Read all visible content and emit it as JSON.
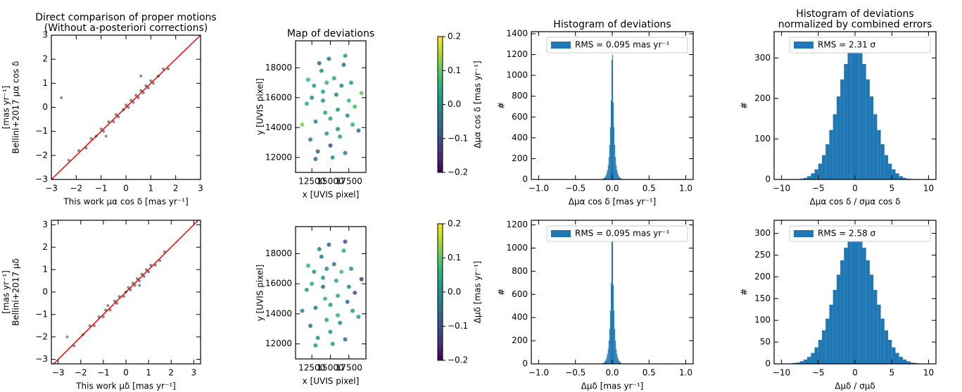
{
  "chart_data": [
    {
      "type": "scatter",
      "title": [
        "Direct comparison of proper motions",
        "(Without a-posteriori corrections)"
      ],
      "xlabel": "This work μα cos δ [mas yr⁻¹]",
      "ylabel": [
        "Bellini+2017 μα cos δ",
        "[mas yr⁻¹]"
      ],
      "x": [
        -2.3,
        -1.9,
        -1.6,
        -1.4,
        -1.2,
        -1.0,
        -0.9,
        -0.7,
        -0.5,
        -0.4,
        -0.3,
        -0.1,
        0.0,
        0.1,
        0.2,
        0.3,
        0.4,
        0.5,
        0.6,
        0.7,
        0.8,
        0.9,
        1.0,
        1.1,
        1.3,
        1.5,
        1.7,
        -2.6,
        -0.8,
        0.6
      ],
      "y": [
        -2.2,
        -1.8,
        -1.7,
        -1.3,
        -1.2,
        -0.9,
        -1.0,
        -0.6,
        -0.6,
        -0.3,
        -0.4,
        -0.1,
        0.1,
        0.0,
        0.3,
        0.2,
        0.5,
        0.4,
        0.7,
        0.6,
        0.9,
        0.8,
        1.1,
        1.0,
        1.3,
        1.6,
        1.6,
        0.4,
        -1.2,
        1.3
      ],
      "color": "#000000",
      "identity_line_color": "#ff0000",
      "xlim": [
        -3,
        3
      ],
      "ylim": [
        -3,
        3
      ],
      "xticks": [
        {
          "value": -3,
          "label": "−3"
        },
        {
          "value": -2,
          "label": "−2"
        },
        {
          "value": -1,
          "label": "−1"
        },
        0,
        1,
        2,
        3
      ],
      "yticks": [
        {
          "value": -3,
          "label": "−3"
        },
        {
          "value": -2,
          "label": "−2"
        },
        {
          "value": -1,
          "label": "−1"
        },
        0,
        1,
        2,
        3
      ]
    },
    {
      "type": "scatter",
      "title": "Map of deviations",
      "xlabel": "x [UVIS pixel]",
      "ylabel": "y [UVIS pixel]",
      "x": [
        11200,
        11800,
        12300,
        12800,
        13300,
        13800,
        14300,
        14800,
        15300,
        15800,
        16300,
        16800,
        17300,
        17800,
        18300,
        18800,
        19200,
        12000,
        13000,
        14000,
        15000,
        16000,
        17000,
        18000,
        12500,
        13500,
        14500,
        15500,
        16500,
        17500,
        13000,
        14000,
        15000,
        16000,
        17000,
        14500
      ],
      "y": [
        14200,
        15600,
        13200,
        16800,
        12400,
        17800,
        15000,
        18600,
        12000,
        16200,
        13400,
        18200,
        14800,
        17000,
        15400,
        13800,
        16300,
        17200,
        14400,
        16400,
        12800,
        15200,
        12300,
        14200,
        16000,
        18300,
        13600,
        17300,
        16800,
        15800,
        11900,
        15800,
        14600,
        13900,
        18800,
        17000
      ],
      "c": [
        0.12,
        0.05,
        -0.03,
        0.02,
        -0.08,
        0.0,
        0.04,
        -0.05,
        0.01,
        -0.02,
        0.03,
        -0.06,
        0.0,
        0.02,
        0.08,
        -0.04,
        0.1,
        0.06,
        -0.01,
        0.03,
        -0.1,
        0.01,
        -0.03,
        0.05,
        0.0,
        -0.07,
        0.02,
        0.04,
        -0.02,
        0.07,
        -0.05,
        0.0,
        0.03,
        -0.01,
        0.02,
        0.06
      ],
      "colormap": "viridis",
      "clim": [
        -0.2,
        0.2
      ],
      "cticks": [
        {
          "value": -0.2,
          "label": "−0.2"
        },
        {
          "value": -0.1,
          "label": "−0.1"
        },
        {
          "value": 0,
          "label": "0.0"
        },
        0.1,
        0.2
      ],
      "colorbar_label": "Δμα cos δ   [mas yr⁻¹]",
      "xlim": [
        10300,
        19800
      ],
      "ylim": [
        11000,
        19800
      ],
      "xticks": [
        12500,
        15000,
        17500
      ],
      "yticks": [
        12000,
        14000,
        16000,
        18000
      ]
    },
    {
      "type": "histogram",
      "title": "Histogram of deviations",
      "xlabel": "Δμα cos δ   [mas yr⁻¹]",
      "ylabel": "#",
      "bins": [
        -0.2,
        -0.19,
        -0.18,
        -0.17,
        -0.16,
        -0.15,
        -0.14,
        -0.13,
        -0.12,
        -0.11,
        -0.1,
        -0.09,
        -0.08,
        -0.07,
        -0.06,
        -0.05,
        -0.04,
        -0.03,
        -0.02,
        -0.01,
        0,
        0.01,
        0.02,
        0.03,
        0.04,
        0.05,
        0.06,
        0.07,
        0.08,
        0.09,
        0.1,
        0.11,
        0.12,
        0.13,
        0.14,
        0.15,
        0.16,
        0.17,
        0.18,
        0.19,
        0.2
      ],
      "series": [
        {
          "name": "RMS = 0.095 mas yr⁻¹",
          "color": "#1f77b4",
          "values": [
            0,
            0,
            1,
            1,
            2,
            3,
            5,
            7,
            11,
            17,
            26,
            40,
            60,
            92,
            140,
            215,
            330,
            500,
            760,
            1150,
            1200,
            740,
            500,
            330,
            215,
            140,
            92,
            60,
            40,
            26,
            17,
            11,
            7,
            5,
            3,
            2,
            1,
            1,
            0,
            0
          ]
        }
      ],
      "legend": "upper right",
      "xlim": [
        -1.1,
        1.1
      ],
      "ylim": [
        0,
        1420
      ],
      "xticks": [
        {
          "value": -1,
          "label": "−1.0"
        },
        {
          "value": -0.5,
          "label": "−0.5"
        },
        {
          "value": 0,
          "label": "0.0"
        },
        0.5,
        {
          "value": 1,
          "label": "1.0"
        }
      ],
      "yticks": [
        0,
        200,
        400,
        600,
        800,
        1000,
        1200,
        1400
      ]
    },
    {
      "type": "histogram",
      "title": [
        "Histogram of deviations",
        "normalized by combined errors"
      ],
      "xlabel": "Δμα cos δ / σμα cos δ",
      "ylabel": "#",
      "bins": [
        -10,
        -9.5,
        -9,
        -8.5,
        -8,
        -7.5,
        -7,
        -6.5,
        -6,
        -5.5,
        -5,
        -4.5,
        -4,
        -3.5,
        -3,
        -2.5,
        -2,
        -1.5,
        -1,
        -0.5,
        0,
        0.5,
        1,
        1.5,
        2,
        2.5,
        3,
        3.5,
        4,
        4.5,
        5,
        5.5,
        6,
        6.5,
        7,
        7.5,
        8,
        8.5,
        9,
        9.5,
        10
      ],
      "series": [
        {
          "name": "RMS = 2.31 σ",
          "color": "#1f77b4",
          "values": [
            0,
            0,
            0,
            1,
            1,
            2,
            4,
            8,
            15,
            25,
            39,
            60,
            87,
            122,
            161,
            205,
            247,
            285,
            313,
            328,
            328,
            313,
            285,
            247,
            205,
            161,
            122,
            87,
            60,
            39,
            25,
            15,
            8,
            4,
            2,
            1,
            1,
            0,
            0,
            0
          ]
        }
      ],
      "legend": "upper right",
      "xlim": [
        -11,
        11
      ],
      "ylim": [
        0,
        365
      ],
      "xticks": [
        {
          "value": -10,
          "label": "−10"
        },
        {
          "value": -5,
          "label": "−5"
        },
        0,
        5,
        10
      ],
      "yticks": [
        0,
        100,
        200,
        300
      ]
    },
    {
      "type": "scatter",
      "xlabel": "This work μδ   [mas yr⁻¹]",
      "ylabel": [
        "Bellini+2017 μδ",
        "[mas yr⁻¹]"
      ],
      "x": [
        -2.3,
        -1.9,
        -1.6,
        -1.4,
        -1.2,
        -1.0,
        -0.9,
        -0.7,
        -0.5,
        -0.4,
        -0.3,
        -0.1,
        0.0,
        0.1,
        0.2,
        0.3,
        0.4,
        0.5,
        0.6,
        0.7,
        0.8,
        0.9,
        1.0,
        1.1,
        1.3,
        1.5,
        1.7,
        -2.6,
        -0.8,
        0.6
      ],
      "y": [
        -2.4,
        -1.9,
        -1.5,
        -1.5,
        -1.1,
        -1.1,
        -0.8,
        -0.8,
        -0.4,
        -0.5,
        -0.2,
        -0.2,
        0.0,
        0.2,
        0.1,
        0.4,
        0.3,
        0.6,
        0.5,
        0.8,
        0.7,
        1.0,
        0.9,
        1.2,
        1.2,
        1.4,
        1.8,
        -2.0,
        -0.6,
        0.3
      ],
      "color": "#000000",
      "identity_line_color": "#ff0000",
      "xlim": [
        -3.3,
        3.3
      ],
      "ylim": [
        -3.2,
        3.2
      ],
      "xticks": [
        {
          "value": -3,
          "label": "−3"
        },
        {
          "value": -2,
          "label": "−2"
        },
        {
          "value": -1,
          "label": "−1"
        },
        0,
        1,
        2,
        3
      ],
      "yticks": [
        {
          "value": -3,
          "label": "−3"
        },
        {
          "value": -2,
          "label": "−2"
        },
        {
          "value": -1,
          "label": "−1"
        },
        0,
        1,
        2,
        3
      ]
    },
    {
      "type": "scatter",
      "xlabel": "x [UVIS pixel]",
      "ylabel": "y [UVIS pixel]",
      "x": [
        11200,
        11800,
        12300,
        12800,
        13300,
        13800,
        14300,
        14800,
        15300,
        15800,
        16300,
        16800,
        17300,
        17800,
        18300,
        18800,
        19200,
        12000,
        13000,
        14000,
        15000,
        16000,
        17000,
        18000,
        12500,
        13500,
        14500,
        15500,
        16500,
        17500,
        13000,
        14000,
        15000,
        16000,
        17000,
        14500
      ],
      "y": [
        14200,
        15600,
        13200,
        16800,
        12400,
        17800,
        15000,
        18600,
        12000,
        16200,
        13400,
        18200,
        14800,
        17000,
        15400,
        13800,
        16300,
        17200,
        14400,
        16400,
        12800,
        15200,
        12300,
        14200,
        16000,
        18300,
        13600,
        17300,
        16800,
        15800,
        11900,
        15800,
        14600,
        13900,
        18800,
        17000
      ],
      "c": [
        -0.02,
        0.03,
        -0.05,
        0.01,
        0.0,
        -0.04,
        0.06,
        -0.08,
        0.02,
        0.04,
        -0.01,
        0.05,
        -0.06,
        0.0,
        -0.09,
        0.03,
        -0.12,
        0.07,
        -0.03,
        0.01,
        0.0,
        0.04,
        -0.07,
        0.02,
        0.05,
        -0.02,
        0.03,
        -0.04,
        0.08,
        -0.01,
        0.02,
        -0.05,
        0.01,
        0.06,
        -0.1,
        0.0
      ],
      "colormap": "viridis",
      "clim": [
        -0.2,
        0.2
      ],
      "cticks": [
        {
          "value": -0.2,
          "label": "−0.2"
        },
        {
          "value": -0.1,
          "label": "−0.1"
        },
        {
          "value": 0,
          "label": "0.0"
        },
        0.1,
        0.2
      ],
      "colorbar_label": "Δμδ   [mas yr⁻¹]",
      "xlim": [
        10300,
        19800
      ],
      "ylim": [
        11000,
        19800
      ],
      "xticks": [
        12500,
        15000,
        17500
      ],
      "yticks": [
        12000,
        14000,
        16000,
        18000
      ]
    },
    {
      "type": "histogram",
      "xlabel": "Δμδ   [mas yr⁻¹]",
      "ylabel": "#",
      "bins": [
        -0.2,
        -0.19,
        -0.18,
        -0.17,
        -0.16,
        -0.15,
        -0.14,
        -0.13,
        -0.12,
        -0.11,
        -0.1,
        -0.09,
        -0.08,
        -0.07,
        -0.06,
        -0.05,
        -0.04,
        -0.03,
        -0.02,
        -0.01,
        0,
        0.01,
        0.02,
        0.03,
        0.04,
        0.05,
        0.06,
        0.07,
        0.08,
        0.09,
        0.1,
        0.11,
        0.12,
        0.13,
        0.14,
        0.15,
        0.16,
        0.17,
        0.18,
        0.19,
        0.2
      ],
      "series": [
        {
          "name": "RMS = 0.095 mas yr⁻¹",
          "color": "#1f77b4",
          "values": [
            0,
            0,
            1,
            1,
            2,
            3,
            4,
            6,
            10,
            16,
            24,
            37,
            55,
            85,
            130,
            200,
            300,
            460,
            700,
            1060,
            1100,
            680,
            460,
            300,
            200,
            130,
            85,
            55,
            37,
            24,
            16,
            10,
            6,
            4,
            3,
            2,
            1,
            1,
            0,
            0
          ]
        }
      ],
      "legend": "upper right",
      "xlim": [
        -1.1,
        1.1
      ],
      "ylim": [
        0,
        1240
      ],
      "xticks": [
        {
          "value": -1,
          "label": "−1.0"
        },
        {
          "value": -0.5,
          "label": "−0.5"
        },
        {
          "value": 0,
          "label": "0.0"
        },
        0.5,
        {
          "value": 1,
          "label": "1.0"
        }
      ],
      "yticks": [
        0,
        200,
        400,
        600,
        800,
        1000,
        1200
      ]
    },
    {
      "type": "histogram",
      "xlabel": "Δμδ  / σμδ",
      "ylabel": "#",
      "bins": [
        -10,
        -9.5,
        -9,
        -8.5,
        -8,
        -7.5,
        -7,
        -6.5,
        -6,
        -5.5,
        -5,
        -4.5,
        -4,
        -3.5,
        -3,
        -2.5,
        -2,
        -1.5,
        -1,
        -0.5,
        0,
        0.5,
        1,
        1.5,
        2,
        2.5,
        3,
        3.5,
        4,
        4.5,
        5,
        5.5,
        6,
        6.5,
        7,
        7.5,
        8,
        8.5,
        9,
        9.5,
        10
      ],
      "series": [
        {
          "name": "RMS = 2.58 σ",
          "color": "#1f77b4",
          "values": [
            0,
            0,
            1,
            2,
            3,
            6,
            10,
            16,
            25,
            38,
            55,
            77,
            104,
            136,
            170,
            205,
            238,
            267,
            287,
            299,
            299,
            287,
            267,
            238,
            205,
            170,
            136,
            104,
            77,
            55,
            38,
            25,
            16,
            10,
            6,
            3,
            2,
            1,
            0,
            0
          ]
        }
      ],
      "legend": "upper right",
      "xlim": [
        -11,
        11
      ],
      "ylim": [
        0,
        330
      ],
      "xticks": [
        {
          "value": -10,
          "label": "−10"
        },
        {
          "value": -5,
          "label": "−5"
        },
        0,
        5,
        10
      ],
      "yticks": [
        0,
        50,
        100,
        150,
        200,
        250,
        300
      ]
    }
  ]
}
